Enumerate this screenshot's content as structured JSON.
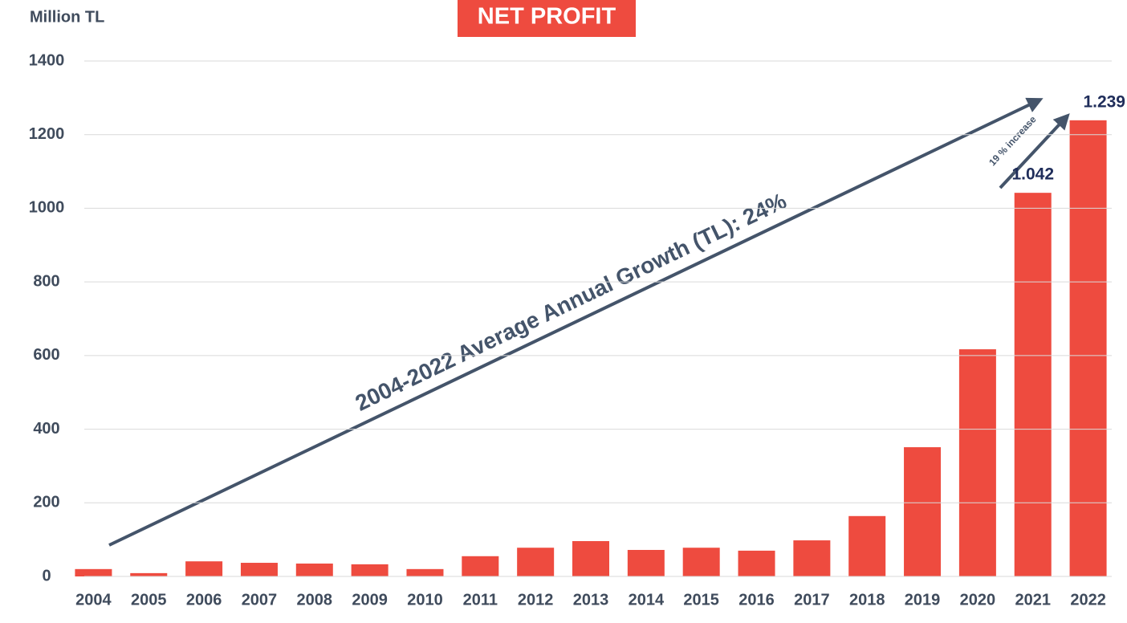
{
  "chart_data": {
    "type": "bar",
    "title": "NET PROFIT",
    "y_label": "Million TL",
    "categories": [
      "2004",
      "2005",
      "2006",
      "2007",
      "2008",
      "2009",
      "2010",
      "2011",
      "2012",
      "2013",
      "2014",
      "2015",
      "2016",
      "2017",
      "2018",
      "2019",
      "2020",
      "2021",
      "2022"
    ],
    "values": [
      20,
      9,
      41,
      37,
      35,
      33,
      20,
      55,
      78,
      96,
      72,
      78,
      70,
      98,
      164,
      351,
      617,
      1042,
      1239
    ],
    "value_labels": [
      null,
      null,
      null,
      null,
      null,
      null,
      null,
      null,
      null,
      null,
      null,
      null,
      null,
      null,
      null,
      null,
      null,
      "1.042",
      "1.239"
    ],
    "color": "#ee4b3f",
    "ylim": [
      0,
      1400
    ],
    "yticks": [
      0,
      200,
      400,
      600,
      800,
      1000,
      1200,
      1400
    ],
    "grid": true,
    "annotations": [
      "2004-2022 Average Annual Growth (TL):  24%",
      "19 % increase"
    ]
  }
}
